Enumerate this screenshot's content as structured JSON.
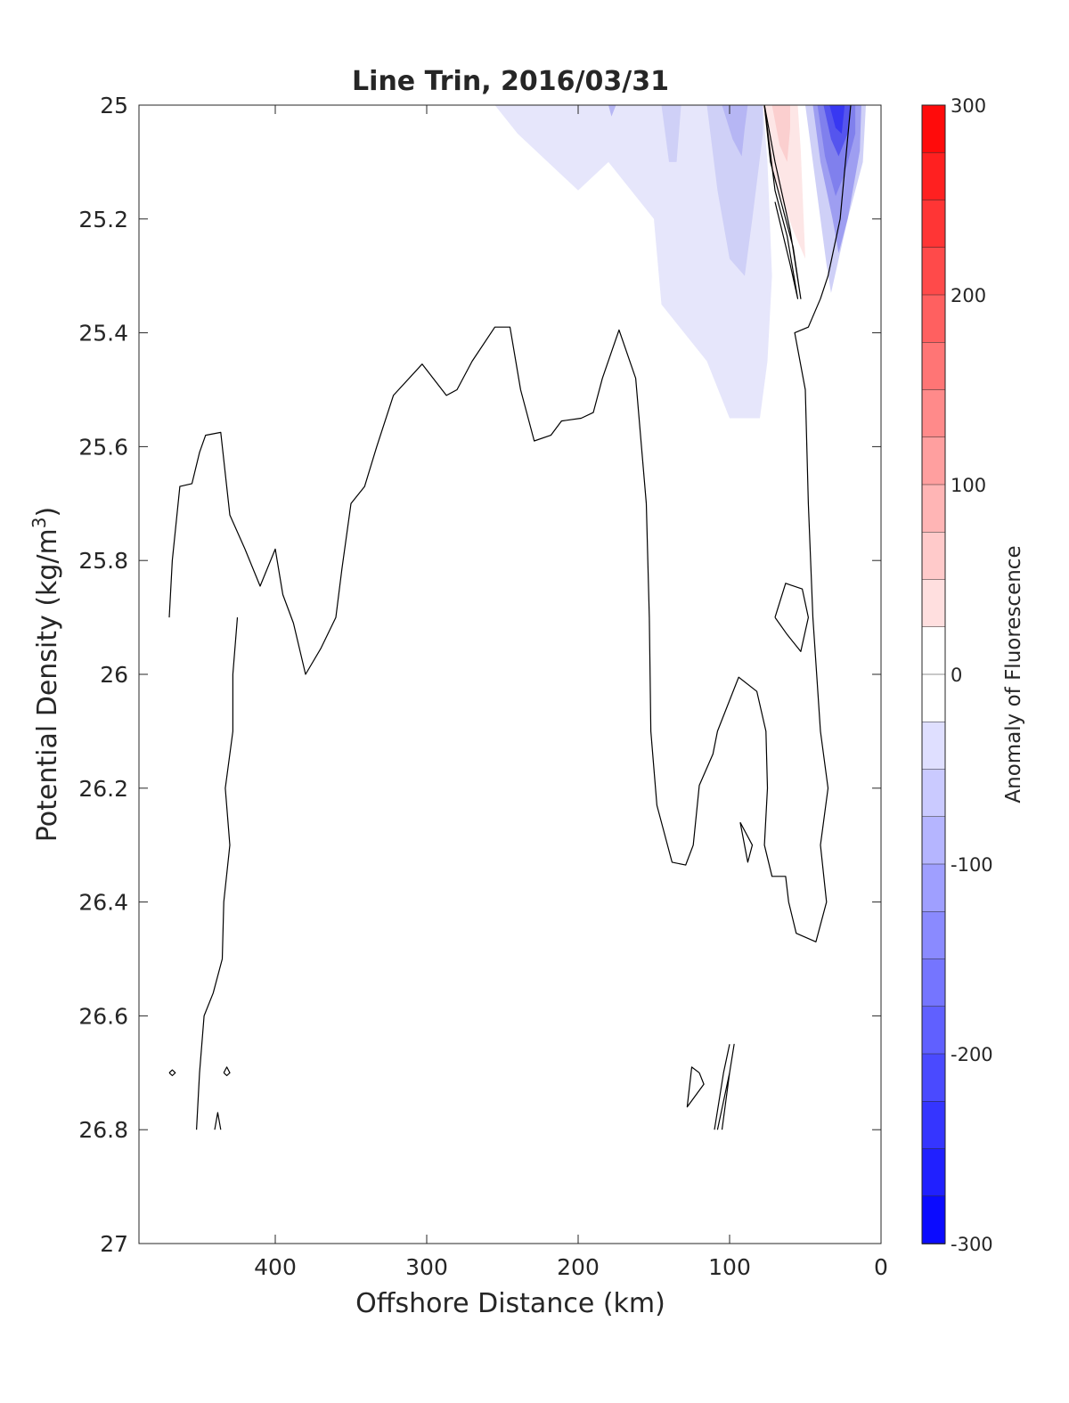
{
  "chart_data": {
    "type": "contour",
    "title": "Line Trin, 2016/03/31",
    "xlabel": "Offshore Distance (km)",
    "ylabel_main": "Potential Density (kg/m",
    "ylabel_sup": "3",
    "ylabel_close": ")",
    "xlim": [
      490,
      0
    ],
    "ylim": [
      25,
      27
    ],
    "x_ticks": [
      400,
      300,
      200,
      100,
      0
    ],
    "x_tick_labels": [
      "400",
      "300",
      "200",
      "100",
      "0"
    ],
    "y_ticks": [
      25,
      25.2,
      25.4,
      25.6,
      25.8,
      26,
      26.2,
      26.4,
      26.6,
      26.8,
      27
    ],
    "y_tick_labels": [
      "25",
      "25.2",
      "25.4",
      "25.6",
      "25.8",
      "26",
      "26.2",
      "26.4",
      "26.6",
      "26.8",
      "27"
    ],
    "y_reversed": true,
    "colorbar": {
      "label": "Anomaly of Fluorescence",
      "range": [
        -300,
        300
      ],
      "levels": 24,
      "ticks": [
        300,
        200,
        100,
        0,
        -100,
        -200,
        -300
      ],
      "tick_labels": [
        "300",
        "200",
        "100",
        "0",
        "-100",
        "-200",
        "-300"
      ],
      "color_max": "#ff0000",
      "color_mid": "#ffffff",
      "color_min": "#0000ff"
    },
    "filled_regions": [
      {
        "level": -25,
        "color": "#e6e6fb",
        "points": [
          [
            255,
            25
          ],
          [
            240,
            25.05
          ],
          [
            200,
            25.15
          ],
          [
            180,
            25.1
          ],
          [
            150,
            25.2
          ],
          [
            145,
            25.35
          ],
          [
            130,
            25.4
          ],
          [
            115,
            25.45
          ],
          [
            100,
            25.55
          ],
          [
            80,
            25.55
          ],
          [
            75,
            25.45
          ],
          [
            72,
            25.3
          ],
          [
            75,
            25.1
          ],
          [
            78,
            25
          ]
        ]
      },
      {
        "level": -50,
        "color": "#cfd0f7",
        "points": [
          [
            145,
            25
          ],
          [
            140,
            25.1
          ],
          [
            135,
            25.1
          ],
          [
            132,
            25
          ],
          [
            115,
            25
          ],
          [
            108,
            25.15
          ],
          [
            100,
            25.27
          ],
          [
            90,
            25.3
          ],
          [
            85,
            25.2
          ],
          [
            78,
            25.05
          ],
          [
            78,
            25
          ]
        ]
      },
      {
        "level": -75,
        "color": "#b6b6f4",
        "points": [
          [
            105,
            25
          ],
          [
            98,
            25.06
          ],
          [
            92,
            25.09
          ],
          [
            90,
            25.04
          ],
          [
            88,
            25
          ]
        ]
      },
      {
        "level": -75,
        "color": "#b6b6f4",
        "points": [
          [
            180,
            25
          ],
          [
            178,
            25.02
          ],
          [
            175,
            25
          ]
        ]
      },
      {
        "level": 25,
        "color": "#fde6e6",
        "points": [
          [
            78,
            25
          ],
          [
            72,
            25.12
          ],
          [
            65,
            25.17
          ],
          [
            58,
            25.22
          ],
          [
            50,
            25.27
          ],
          [
            53,
            25.08
          ],
          [
            55,
            25
          ]
        ]
      },
      {
        "level": 50,
        "color": "#fbcfcf",
        "points": [
          [
            72,
            25
          ],
          [
            67,
            25.07
          ],
          [
            62,
            25.1
          ],
          [
            60,
            25.04
          ],
          [
            60,
            25
          ]
        ]
      },
      {
        "level": -50,
        "color": "#cfd0f7",
        "points": [
          [
            50,
            25
          ],
          [
            44,
            25.12
          ],
          [
            36,
            25.28
          ],
          [
            33,
            25.33
          ],
          [
            22,
            25.2
          ],
          [
            12,
            25.1
          ],
          [
            10,
            25
          ]
        ]
      },
      {
        "level": -100,
        "color": "#9e9ef1",
        "points": [
          [
            45,
            25
          ],
          [
            40,
            25.1
          ],
          [
            32,
            25.2
          ],
          [
            28,
            25.26
          ],
          [
            22,
            25.2
          ],
          [
            14,
            25.08
          ],
          [
            13,
            25
          ]
        ]
      },
      {
        "level": -150,
        "color": "#8080ed",
        "points": [
          [
            42,
            25
          ],
          [
            37,
            25.09
          ],
          [
            30,
            25.16
          ],
          [
            24,
            25.12
          ],
          [
            17,
            25.05
          ],
          [
            17,
            25
          ]
        ]
      },
      {
        "level": -200,
        "color": "#5555ee",
        "points": [
          [
            38,
            25
          ],
          [
            33,
            25.06
          ],
          [
            28,
            25.09
          ],
          [
            22,
            25.05
          ],
          [
            20,
            25
          ]
        ]
      },
      {
        "level": -250,
        "color": "#3838f2",
        "points": [
          [
            34,
            25
          ],
          [
            30,
            25.04
          ],
          [
            26,
            25.05
          ],
          [
            24,
            25
          ]
        ]
      }
    ],
    "zero_contours": [
      {
        "points": [
          [
            470,
            25.9
          ],
          [
            468,
            25.8
          ],
          [
            463,
            25.67
          ],
          [
            455,
            25.665
          ],
          [
            450,
            25.61
          ],
          [
            446,
            25.58
          ],
          [
            436,
            25.575
          ],
          [
            430,
            25.72
          ],
          [
            420,
            25.78
          ],
          [
            410,
            25.845
          ],
          [
            400,
            25.78
          ],
          [
            395,
            25.86
          ],
          [
            388,
            25.91
          ],
          [
            380,
            26
          ],
          [
            370,
            25.955
          ],
          [
            360,
            25.9
          ],
          [
            356,
            25.815
          ],
          [
            350,
            25.7
          ],
          [
            341,
            25.67
          ],
          [
            333,
            25.6
          ],
          [
            322,
            25.51
          ],
          [
            303,
            25.455
          ],
          [
            287,
            25.51
          ],
          [
            280,
            25.5
          ],
          [
            270,
            25.45
          ],
          [
            255,
            25.39
          ],
          [
            245,
            25.39
          ],
          [
            238,
            25.5
          ],
          [
            229,
            25.59
          ],
          [
            218,
            25.58
          ],
          [
            211,
            25.555
          ],
          [
            198,
            25.55
          ],
          [
            190,
            25.54
          ],
          [
            184,
            25.48
          ],
          [
            173,
            25.395
          ],
          [
            162,
            25.48
          ],
          [
            155,
            25.7
          ],
          [
            153,
            25.9
          ],
          [
            152,
            26.1
          ],
          [
            148,
            26.23
          ],
          [
            138,
            26.33
          ],
          [
            129,
            26.335
          ],
          [
            124,
            26.3
          ],
          [
            120,
            26.195
          ],
          [
            111,
            26.14
          ],
          [
            108,
            26.1
          ],
          [
            94,
            26.005
          ],
          [
            82,
            26.03
          ],
          [
            76,
            26.1
          ],
          [
            75,
            26.2
          ],
          [
            77,
            26.3
          ],
          [
            72,
            26.355
          ],
          [
            63,
            26.355
          ],
          [
            61,
            26.4
          ],
          [
            56,
            26.455
          ],
          [
            43,
            26.47
          ],
          [
            36,
            26.4
          ],
          [
            40,
            26.3
          ],
          [
            35,
            26.2
          ],
          [
            40,
            26.1
          ],
          [
            45,
            25.9
          ],
          [
            48,
            25.7
          ],
          [
            50,
            25.5
          ],
          [
            57,
            25.4
          ],
          [
            48,
            25.39
          ],
          [
            40,
            25.34
          ],
          [
            35,
            25.3
          ],
          [
            27,
            25.2
          ],
          [
            20,
            25
          ]
        ]
      },
      {
        "points": [
          [
            77,
            25
          ],
          [
            70,
            25.15
          ],
          [
            62,
            25.23
          ],
          [
            55,
            25.34
          ],
          [
            60,
            25.28
          ],
          [
            70,
            25.17
          ]
        ]
      },
      {
        "points": [
          [
            77,
            25
          ],
          [
            73,
            25.1
          ],
          [
            65,
            25.18
          ],
          [
            58,
            25.25
          ],
          [
            53,
            25.34
          ],
          [
            60,
            25.22
          ],
          [
            70,
            25.1
          ],
          [
            77,
            25
          ]
        ]
      },
      {
        "points": [
          [
            70,
            25.9
          ],
          [
            63,
            25.84
          ],
          [
            52,
            25.85
          ],
          [
            48,
            25.9
          ],
          [
            53,
            25.96
          ],
          [
            62,
            25.93
          ],
          [
            70,
            25.9
          ]
        ]
      },
      {
        "points": [
          [
            93,
            26.26
          ],
          [
            85,
            26.3
          ],
          [
            88,
            26.33
          ],
          [
            93,
            26.26
          ]
        ]
      },
      {
        "points": [
          [
            120,
            26.7
          ],
          [
            125,
            26.69
          ],
          [
            128,
            26.76
          ],
          [
            117,
            26.72
          ],
          [
            120,
            26.7
          ]
        ]
      },
      {
        "points": [
          [
            105,
            26.8
          ],
          [
            100,
            26.7
          ],
          [
            97,
            26.65
          ],
          [
            100,
            26.7
          ],
          [
            108,
            26.8
          ]
        ]
      },
      {
        "points": [
          [
            110,
            26.8
          ],
          [
            104,
            26.7
          ],
          [
            100,
            26.65
          ]
        ]
      },
      {
        "points": [
          [
            452,
            26.8
          ],
          [
            450,
            26.7
          ],
          [
            447,
            26.6
          ],
          [
            441,
            26.56
          ],
          [
            435,
            26.5
          ],
          [
            434,
            26.4
          ],
          [
            430,
            26.3
          ],
          [
            433,
            26.2
          ],
          [
            428,
            26.1
          ],
          [
            428,
            26
          ],
          [
            425,
            25.9
          ]
        ]
      },
      {
        "points": [
          [
            440,
            26.8
          ],
          [
            438,
            26.77
          ],
          [
            436,
            26.8
          ]
        ]
      },
      {
        "points": [
          [
            470,
            26.7
          ],
          [
            468,
            26.705
          ],
          [
            466,
            26.7
          ],
          [
            468,
            26.695
          ],
          [
            470,
            26.7
          ]
        ]
      },
      {
        "points": [
          [
            434,
            26.7
          ],
          [
            432,
            26.705
          ],
          [
            430,
            26.7
          ],
          [
            432,
            26.69
          ],
          [
            434,
            26.7
          ]
        ]
      }
    ]
  }
}
